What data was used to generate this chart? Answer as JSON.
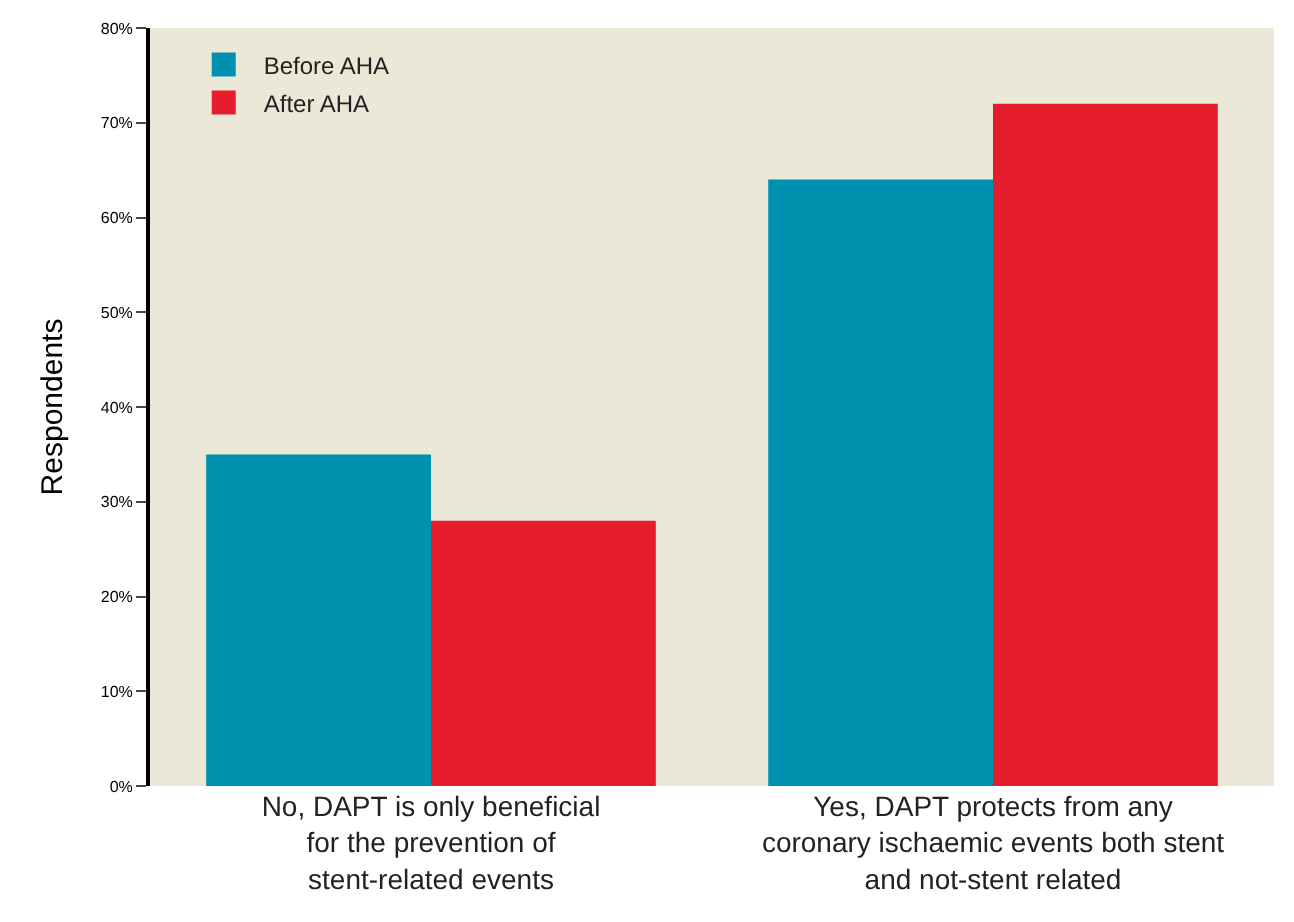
{
  "chart_data": {
    "type": "bar",
    "ylabel": "Respondents",
    "categories": [
      "No, DAPT is only beneficial\nfor the prevention of\nstent-related events",
      "Yes, DAPT protects from any\ncoronary ischaemic events both stent\nand not-stent related"
    ],
    "series": [
      {
        "name": "Before AHA",
        "color": "#0090b0",
        "values": [
          35,
          64
        ]
      },
      {
        "name": "After AHA",
        "color": "#e41c2c",
        "values": [
          28,
          72
        ]
      }
    ],
    "ylim": [
      0,
      80
    ],
    "yticks": [
      {
        "value": 0,
        "label": "0%"
      },
      {
        "value": 10,
        "label": "10%"
      },
      {
        "value": 20,
        "label": "20%"
      },
      {
        "value": 30,
        "label": "30%"
      },
      {
        "value": 40,
        "label": "40%"
      },
      {
        "value": 50,
        "label": "50%"
      },
      {
        "value": 60,
        "label": "60%"
      },
      {
        "value": 70,
        "label": "70%"
      },
      {
        "value": 80,
        "label": "80%"
      }
    ],
    "grid": false,
    "legend": "top left"
  }
}
